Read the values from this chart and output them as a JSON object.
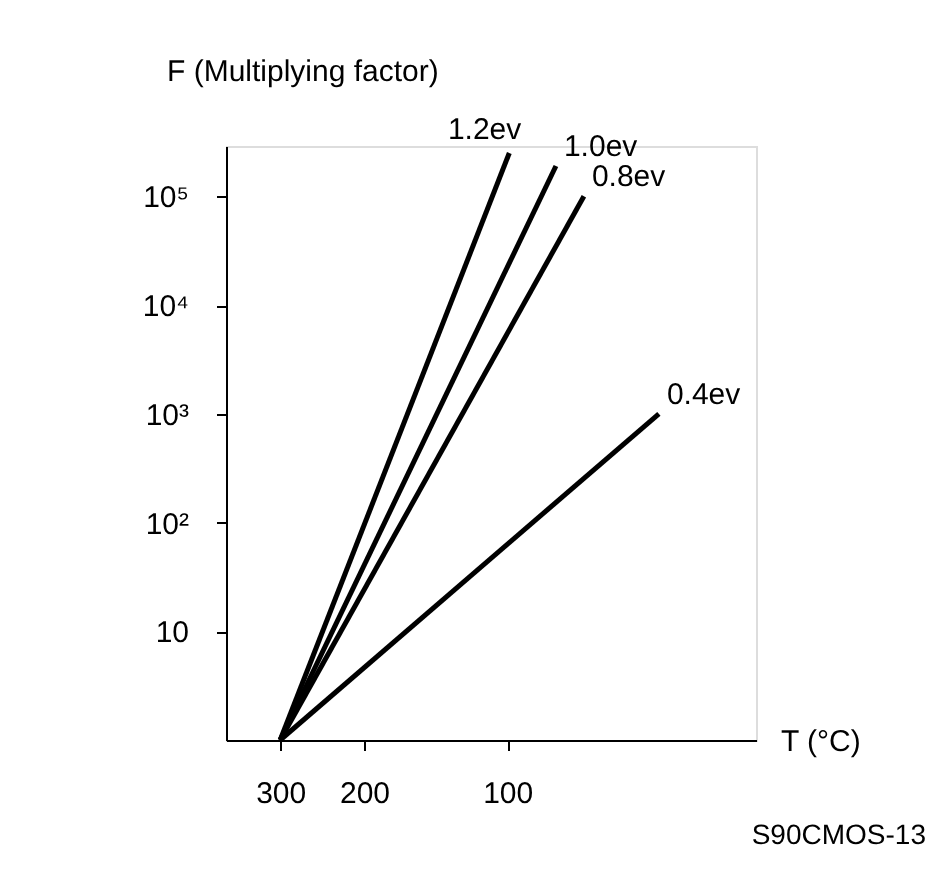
{
  "chart_data": {
    "type": "line",
    "xlabel": "T (°C)",
    "ylabel": "F (Multiplying factor)",
    "log": "xy",
    "xlim": [
      390,
      30
    ],
    "ylim": [
      1,
      290000
    ],
    "xticks": [
      300,
      200,
      100
    ],
    "yticks": [
      {
        "value": 10,
        "label": "10"
      },
      {
        "value": 100,
        "label": "10²"
      },
      {
        "value": 1000,
        "label": "10³"
      },
      {
        "value": 10000,
        "label": "10⁴"
      },
      {
        "value": 100000,
        "label": "10⁵"
      }
    ],
    "grid": false,
    "legend": false,
    "marker": "none",
    "line_style": "solid",
    "series": [
      {
        "name": "1.2ev",
        "color": "#000000",
        "x": [
          300,
          99
        ],
        "values": [
          1,
          250000
        ]
      },
      {
        "name": "1.0ev",
        "color": "#000000",
        "x": [
          300,
          79
        ],
        "values": [
          1,
          190000
        ]
      },
      {
        "name": "0.8ev",
        "color": "#000000",
        "x": [
          300,
          69
        ],
        "values": [
          1,
          100000
        ]
      },
      {
        "name": "0.4ev",
        "color": "#000000",
        "x": [
          300,
          48
        ],
        "values": [
          1,
          1000
        ]
      }
    ],
    "annotations": [
      "S90CMOS-13"
    ]
  }
}
